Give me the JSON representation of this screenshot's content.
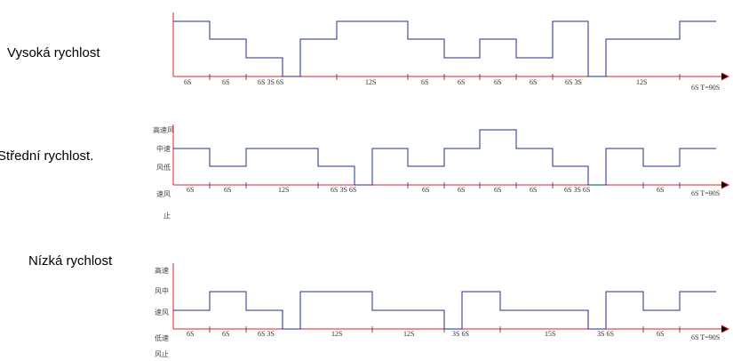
{
  "rows": [
    {
      "label": "Vysoká rychlost",
      "level_labels": [],
      "segment_labels": [
        "6S",
        "6S",
        "6S 3S 6S",
        "12S",
        "6S",
        "6S",
        "6S",
        "6S",
        "6S 3S",
        "12S",
        "6S T=90S"
      ]
    },
    {
      "label": "Střední rychlost.",
      "level_labels": [
        "高速风",
        "中速",
        "风低",
        "速风",
        "止"
      ],
      "segment_labels": [
        "6S",
        "6S",
        "12S",
        "6S 3S 6S",
        "6S",
        "6S",
        "6S",
        "6S",
        "6S 3S 6S",
        "6S",
        "6S T=90S"
      ]
    },
    {
      "label": "Nízká rychlost",
      "level_labels": [
        "高速",
        "风中",
        "速风",
        "低速",
        "风止"
      ],
      "segment_labels": [
        "6S",
        "6S",
        "6S 3S",
        "12S",
        "12S",
        "3S 6S",
        "15S",
        "3S 6S",
        "6S",
        "6S T=90S"
      ]
    }
  ],
  "colors": {
    "axis": "#e0202a",
    "trace": "#1c2f8c"
  }
}
